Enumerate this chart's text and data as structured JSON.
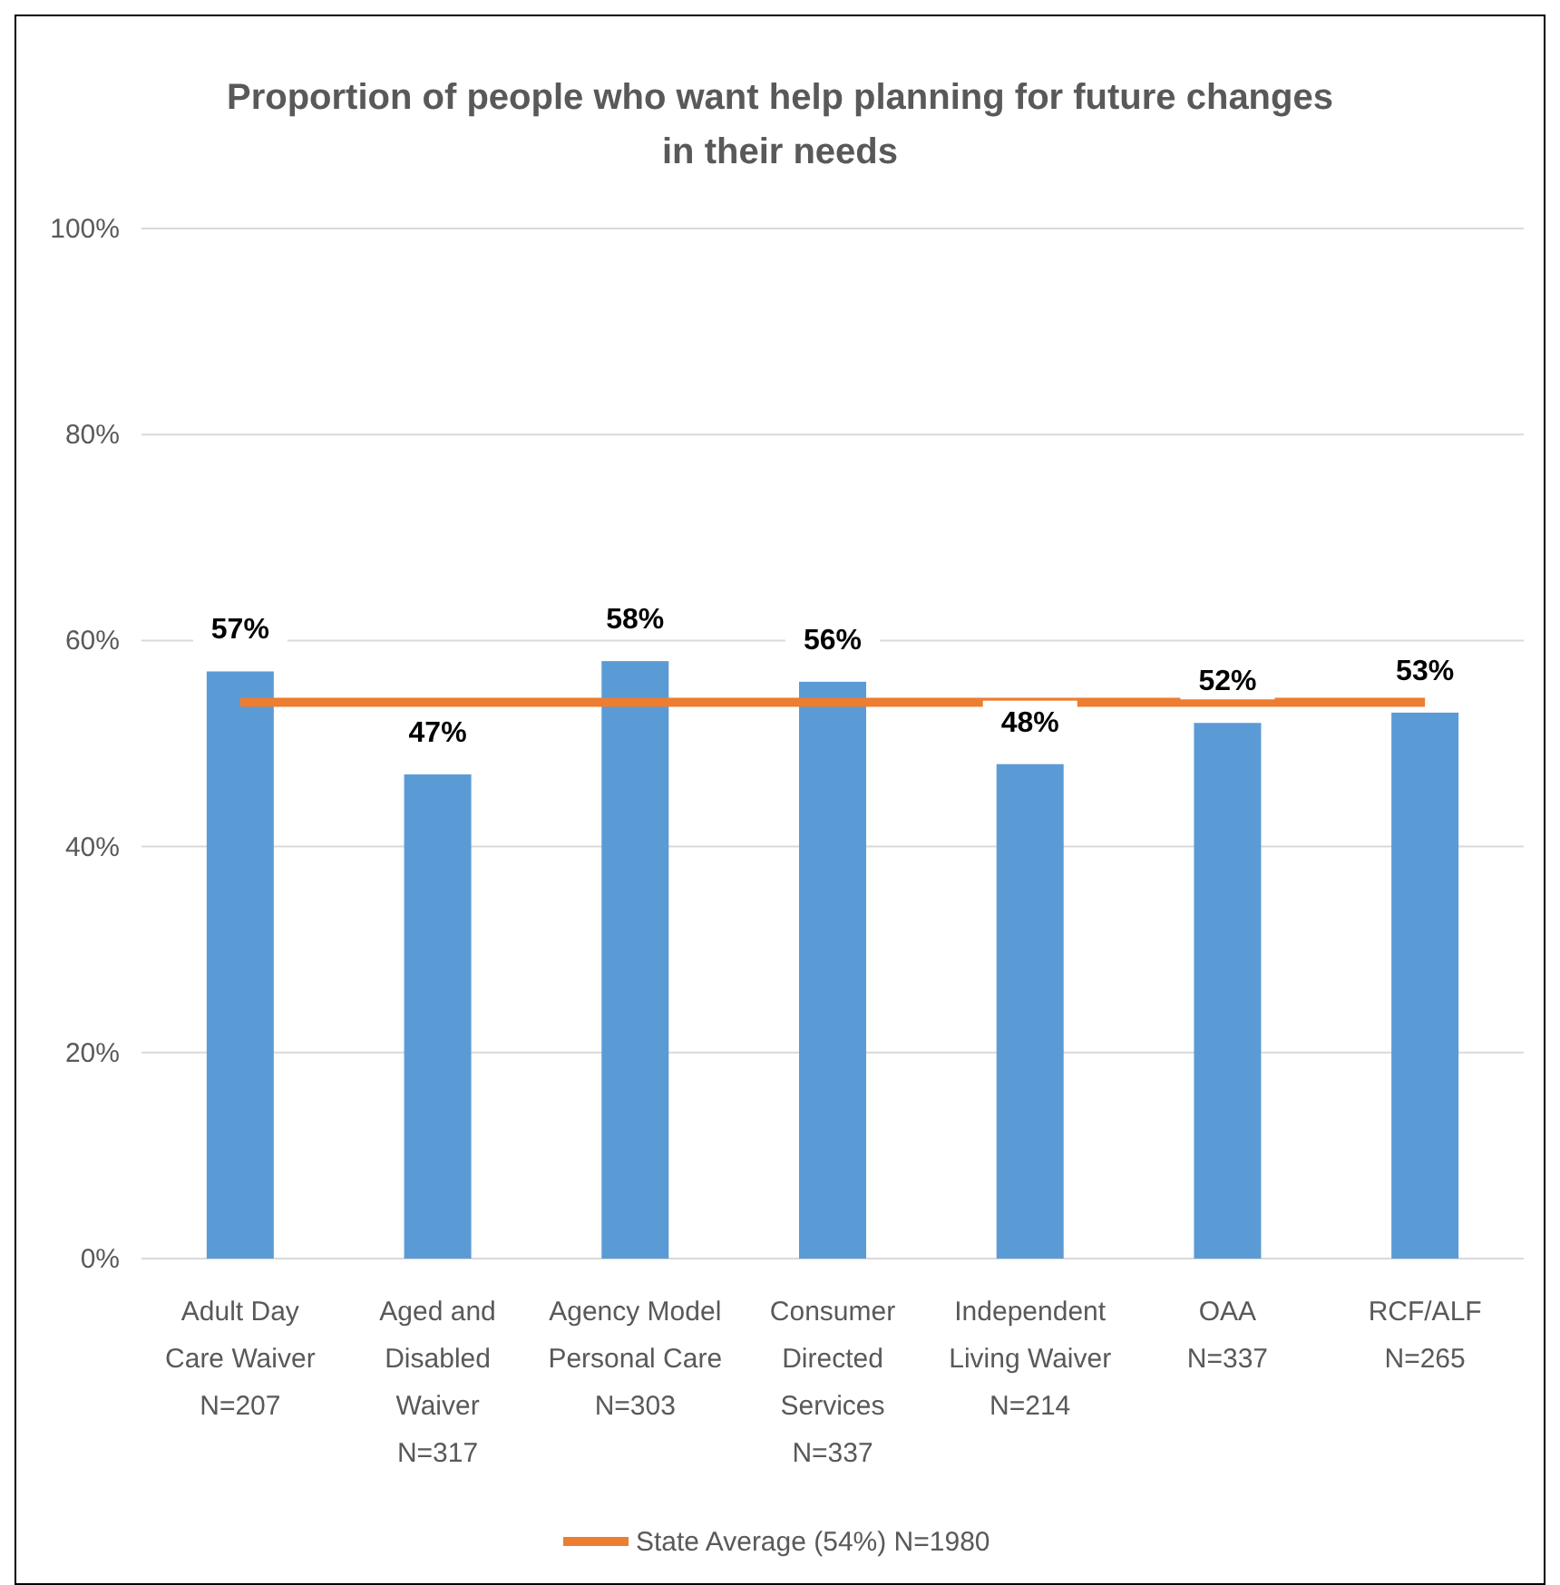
{
  "chart_data": {
    "type": "bar",
    "title": "Proportion of people who want help planning for future changes in their needs",
    "categories": [
      "Adult Day Care Waiver N=207",
      "Aged and Disabled Waiver N=317",
      "Agency Model Personal Care N=303",
      "Consumer Directed Services N=337",
      "Independent Living Waiver N=214",
      "OAA N=337",
      "RCF/ALF N=265"
    ],
    "series": [
      {
        "color": "#5b9bd5",
        "values": [
          57,
          47,
          58,
          56,
          48,
          52,
          53
        ],
        "value_labels": [
          "57%",
          "47%",
          "58%",
          "56%",
          "48%",
          "52%",
          "53%"
        ]
      },
      {
        "type": "line",
        "name": "State Average (54%) N=1980",
        "color": "#ed7d31",
        "values": [
          54,
          54,
          54,
          54,
          54,
          54,
          54
        ]
      }
    ],
    "ylim": [
      0,
      100
    ],
    "yticks": [
      {
        "value": 0,
        "label": "0%"
      },
      {
        "value": 20,
        "label": "20%"
      },
      {
        "value": 40,
        "label": "40%"
      },
      {
        "value": 60,
        "label": "60%"
      },
      {
        "value": 80,
        "label": "80%"
      },
      {
        "value": 100,
        "label": "100%"
      }
    ],
    "grid": "y",
    "legend": "bottom"
  }
}
